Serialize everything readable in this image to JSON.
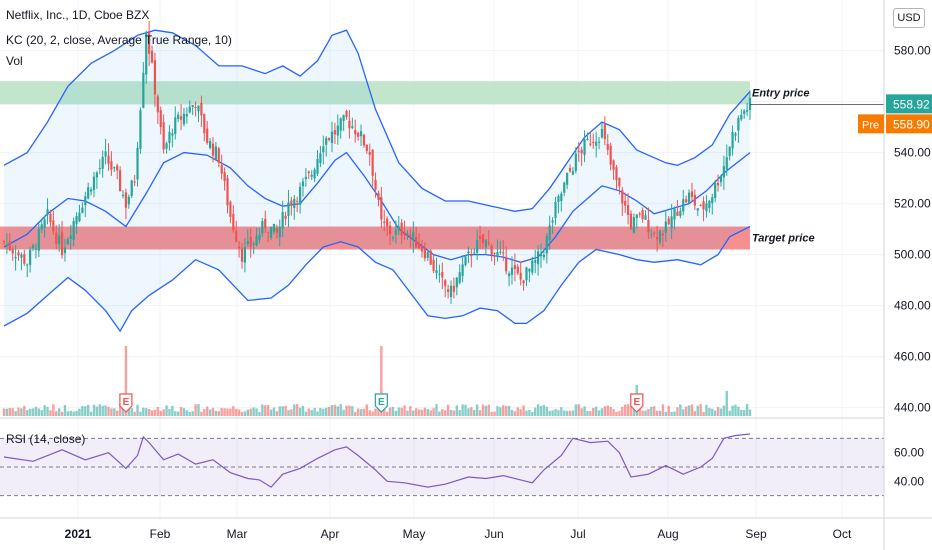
{
  "header": {
    "title": "Netflix, Inc., 1D, Cboe BZX",
    "indicator": "KC (20, 2, close, Average True Range, 10)",
    "volume_label": "Vol",
    "currency": "USD"
  },
  "rsi": {
    "label": "RSI (14, close)"
  },
  "zones": {
    "entry": {
      "label": "Entry price",
      "low": 558.9,
      "high": 568.0,
      "color": "#b7e1c3"
    },
    "target": {
      "label": "Target price",
      "low": 502.0,
      "high": 511.0,
      "color": "#f47c7c"
    }
  },
  "price_tags": {
    "last": "558.92",
    "pre_label": "Pre",
    "pre": "558.90",
    "last_color": "#26a69a",
    "pre_color": "#f57c00"
  },
  "earnings_marker": "E",
  "chart_data": {
    "type": "candlestick",
    "y_ticks": [
      580,
      560,
      540,
      520,
      500,
      480,
      460,
      440
    ],
    "ylim": [
      432,
      592
    ],
    "rsi_ticks": [
      60,
      40
    ],
    "rsi_levels": [
      70,
      50,
      30
    ],
    "x_labels": [
      "2021",
      "Feb",
      "Mar",
      "Apr",
      "May",
      "Jun",
      "Jul",
      "Aug",
      "Sep",
      "Oct"
    ],
    "close_path": [
      [
        0,
        505
      ],
      [
        8,
        497
      ],
      [
        15,
        515
      ],
      [
        20,
        502
      ],
      [
        25,
        516
      ],
      [
        30,
        528
      ],
      [
        35,
        538
      ],
      [
        39,
        530
      ],
      [
        42,
        520
      ],
      [
        45,
        530
      ],
      [
        49,
        588
      ],
      [
        52,
        565
      ],
      [
        55,
        540
      ],
      [
        58,
        550
      ],
      [
        62,
        555
      ],
      [
        66,
        560
      ],
      [
        70,
        545
      ],
      [
        74,
        538
      ],
      [
        78,
        515
      ],
      [
        82,
        500
      ],
      [
        86,
        505
      ],
      [
        90,
        512
      ],
      [
        94,
        508
      ],
      [
        98,
        520
      ],
      [
        102,
        525
      ],
      [
        106,
        532
      ],
      [
        110,
        545
      ],
      [
        114,
        548
      ],
      [
        118,
        553
      ],
      [
        122,
        548
      ],
      [
        126,
        540
      ],
      [
        130,
        512
      ],
      [
        134,
        508
      ],
      [
        138,
        510
      ],
      [
        142,
        505
      ],
      [
        146,
        500
      ],
      [
        150,
        490
      ],
      [
        154,
        485
      ],
      [
        158,
        495
      ],
      [
        162,
        503
      ],
      [
        166,
        505
      ],
      [
        170,
        500
      ],
      [
        174,
        495
      ],
      [
        178,
        490
      ],
      [
        182,
        495
      ],
      [
        186,
        502
      ],
      [
        190,
        518
      ],
      [
        194,
        530
      ],
      [
        198,
        540
      ],
      [
        202,
        545
      ],
      [
        206,
        548
      ],
      [
        209,
        535
      ],
      [
        212,
        525
      ],
      [
        216,
        512
      ],
      [
        220,
        515
      ],
      [
        224,
        508
      ],
      [
        228,
        510
      ],
      [
        232,
        518
      ],
      [
        236,
        523
      ],
      [
        240,
        517
      ],
      [
        244,
        524
      ],
      [
        248,
        535
      ],
      [
        251,
        547
      ],
      [
        254,
        555
      ],
      [
        257,
        558.9
      ]
    ],
    "upper_band": [
      [
        0,
        535
      ],
      [
        8,
        540
      ],
      [
        15,
        552
      ],
      [
        22,
        566
      ],
      [
        30,
        575
      ],
      [
        38,
        580
      ],
      [
        46,
        586
      ],
      [
        52,
        588
      ],
      [
        58,
        587
      ],
      [
        66,
        582
      ],
      [
        74,
        574
      ],
      [
        82,
        574
      ],
      [
        90,
        571
      ],
      [
        96,
        574
      ],
      [
        102,
        570
      ],
      [
        108,
        576
      ],
      [
        113,
        586
      ],
      [
        118,
        588
      ],
      [
        122,
        579
      ],
      [
        128,
        557
      ],
      [
        136,
        536
      ],
      [
        144,
        526
      ],
      [
        152,
        521
      ],
      [
        160,
        521
      ],
      [
        168,
        519
      ],
      [
        176,
        517
      ],
      [
        182,
        518
      ],
      [
        188,
        526
      ],
      [
        194,
        536
      ],
      [
        200,
        546
      ],
      [
        206,
        552
      ],
      [
        212,
        549
      ],
      [
        218,
        541
      ],
      [
        222,
        539
      ],
      [
        228,
        536
      ],
      [
        232,
        535
      ],
      [
        238,
        538
      ],
      [
        244,
        543
      ],
      [
        250,
        555
      ],
      [
        257,
        564
      ]
    ],
    "middle_band": [
      [
        0,
        503
      ],
      [
        8,
        508
      ],
      [
        15,
        516
      ],
      [
        22,
        522
      ],
      [
        28,
        521
      ],
      [
        35,
        517
      ],
      [
        42,
        511
      ],
      [
        49,
        524
      ],
      [
        55,
        536
      ],
      [
        62,
        540
      ],
      [
        70,
        539
      ],
      [
        78,
        534
      ],
      [
        84,
        527
      ],
      [
        90,
        522
      ],
      [
        96,
        519
      ],
      [
        102,
        520
      ],
      [
        108,
        528
      ],
      [
        114,
        537
      ],
      [
        118,
        540
      ],
      [
        124,
        531
      ],
      [
        130,
        521
      ],
      [
        136,
        510
      ],
      [
        142,
        505
      ],
      [
        148,
        500
      ],
      [
        154,
        498
      ],
      [
        160,
        500
      ],
      [
        166,
        500
      ],
      [
        172,
        499
      ],
      [
        178,
        497
      ],
      [
        184,
        499
      ],
      [
        190,
        507
      ],
      [
        196,
        517
      ],
      [
        202,
        523
      ],
      [
        206,
        527
      ],
      [
        212,
        525
      ],
      [
        218,
        521
      ],
      [
        224,
        516
      ],
      [
        230,
        518
      ],
      [
        236,
        520
      ],
      [
        242,
        525
      ],
      [
        248,
        532
      ],
      [
        257,
        540
      ]
    ],
    "lower_band": [
      [
        0,
        472
      ],
      [
        8,
        477
      ],
      [
        15,
        484
      ],
      [
        22,
        491
      ],
      [
        28,
        486
      ],
      [
        35,
        478
      ],
      [
        40,
        470
      ],
      [
        44,
        478
      ],
      [
        50,
        484
      ],
      [
        58,
        490
      ],
      [
        66,
        498
      ],
      [
        74,
        494
      ],
      [
        84,
        482
      ],
      [
        92,
        483
      ],
      [
        98,
        488
      ],
      [
        104,
        496
      ],
      [
        110,
        503
      ],
      [
        116,
        505
      ],
      [
        122,
        503
      ],
      [
        128,
        497
      ],
      [
        134,
        494
      ],
      [
        140,
        485
      ],
      [
        146,
        476
      ],
      [
        152,
        475
      ],
      [
        158,
        476
      ],
      [
        164,
        479
      ],
      [
        170,
        478
      ],
      [
        176,
        473
      ],
      [
        180,
        473
      ],
      [
        186,
        478
      ],
      [
        192,
        488
      ],
      [
        198,
        497
      ],
      [
        204,
        502
      ],
      [
        212,
        500
      ],
      [
        218,
        498
      ],
      [
        224,
        497
      ],
      [
        232,
        498
      ],
      [
        240,
        496
      ],
      [
        246,
        500
      ],
      [
        250,
        507
      ],
      [
        257,
        511
      ]
    ],
    "rsi_path": [
      [
        0,
        57
      ],
      [
        10,
        54
      ],
      [
        20,
        62
      ],
      [
        28,
        55
      ],
      [
        36,
        60
      ],
      [
        42,
        49
      ],
      [
        46,
        58
      ],
      [
        48,
        71
      ],
      [
        50,
        67
      ],
      [
        55,
        55
      ],
      [
        60,
        59
      ],
      [
        66,
        52
      ],
      [
        72,
        55
      ],
      [
        78,
        46
      ],
      [
        84,
        42
      ],
      [
        88,
        41
      ],
      [
        92,
        36
      ],
      [
        96,
        45
      ],
      [
        102,
        49
      ],
      [
        108,
        56
      ],
      [
        114,
        62
      ],
      [
        118,
        64
      ],
      [
        122,
        58
      ],
      [
        128,
        48
      ],
      [
        132,
        40
      ],
      [
        138,
        39
      ],
      [
        146,
        36
      ],
      [
        152,
        38
      ],
      [
        160,
        43
      ],
      [
        166,
        42
      ],
      [
        172,
        44
      ],
      [
        178,
        41
      ],
      [
        182,
        39
      ],
      [
        186,
        48
      ],
      [
        192,
        58
      ],
      [
        196,
        70
      ],
      [
        202,
        67
      ],
      [
        208,
        68
      ],
      [
        212,
        60
      ],
      [
        216,
        43
      ],
      [
        222,
        45
      ],
      [
        228,
        51
      ],
      [
        234,
        45
      ],
      [
        240,
        50
      ],
      [
        244,
        56
      ],
      [
        248,
        70
      ],
      [
        252,
        72
      ],
      [
        257,
        73
      ]
    ],
    "earnings_at": [
      42,
      130,
      218
    ],
    "volume_spikes": [
      [
        42,
        1.0
      ],
      [
        130,
        1.0
      ],
      [
        218,
        0.35
      ],
      [
        249,
        0.25
      ]
    ]
  }
}
